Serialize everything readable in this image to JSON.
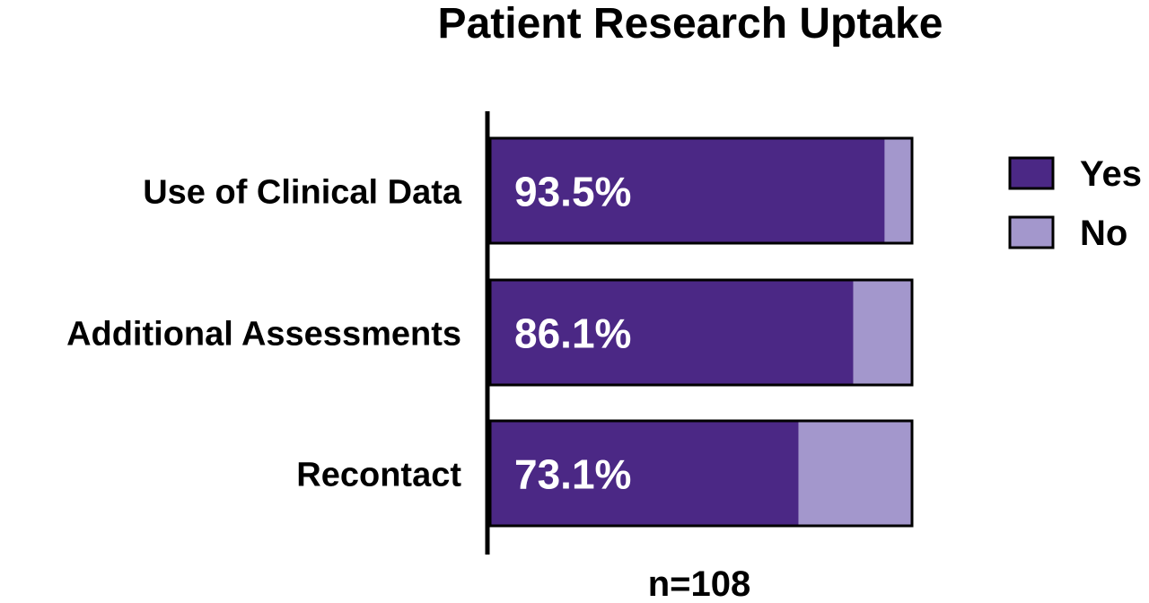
{
  "chart_data": {
    "type": "bar",
    "orientation": "horizontal",
    "stacked": true,
    "normalized_percent": true,
    "title": "Patient Research Uptake",
    "categories": [
      "Use of Clinical Data",
      "Additional Assessments",
      "Recontact"
    ],
    "series": [
      {
        "name": "Yes",
        "values": [
          93.5,
          86.1,
          73.1
        ],
        "labels": [
          "93.5%",
          "86.1%",
          "73.1%"
        ],
        "color": "#4b2885"
      },
      {
        "name": "No",
        "values": [
          6.5,
          13.9,
          26.9
        ],
        "color": "#a397cc"
      }
    ],
    "xlim": [
      0,
      100
    ],
    "annotation": "n=108",
    "legend_position": "right",
    "grid": false,
    "x_axis_visible": false,
    "colors": {
      "outline": "#000000",
      "label_on_bar": "#ffffff",
      "text": "#000000"
    }
  }
}
